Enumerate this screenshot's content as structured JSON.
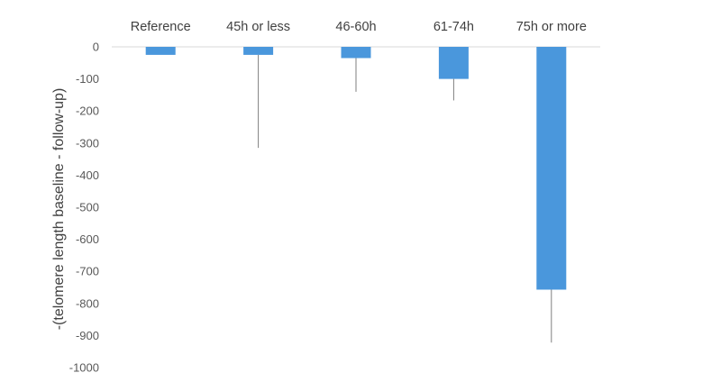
{
  "chart_data": {
    "type": "bar",
    "title": "",
    "xlabel": "",
    "ylabel": "-(telomere length baseline - follow-up)",
    "categories": [
      "Reference",
      "45h or less",
      "46-60h",
      "61-74h",
      "75h or more"
    ],
    "values": [
      -25,
      -25,
      -35,
      -100,
      -757
    ],
    "error_bars": {
      "direction": "minus",
      "values": [
        0,
        290,
        105,
        67,
        165
      ]
    },
    "ylim": [
      -1000,
      0
    ],
    "yticks": [
      0,
      -100,
      -200,
      -300,
      -400,
      -500,
      -600,
      -700,
      -800,
      -900,
      -1000
    ],
    "category_labels_position": "top",
    "grid": false,
    "legend": "none",
    "bar_color": "#4a97dc",
    "error_bar_color": "#7f7f7f",
    "axis_line_color": "#d9d9d9"
  }
}
